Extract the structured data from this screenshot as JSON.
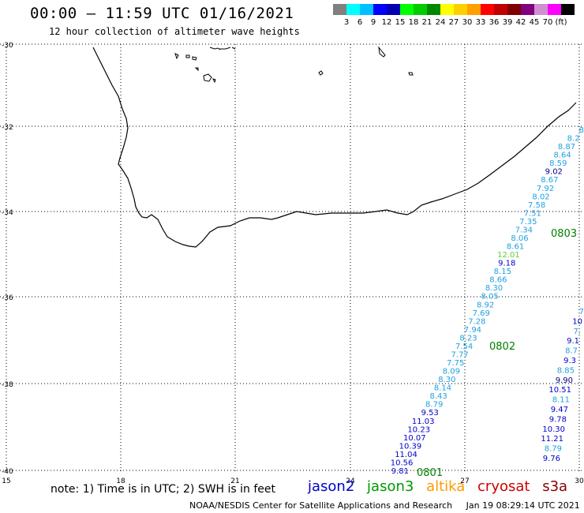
{
  "header": {
    "title": "00:00 – 11:59 UTC 01/16/2021",
    "subtitle": "12 hour collection of altimeter wave heights"
  },
  "legend": {
    "colors": [
      "#808080",
      "#00ffff",
      "#00c0ff",
      "#0000ff",
      "#0000b0",
      "#00ff00",
      "#00cc00",
      "#008800",
      "#ffff00",
      "#ffd000",
      "#ffa000",
      "#ff0000",
      "#c00000",
      "#800000",
      "#800080",
      "#d090d0",
      "#ff00ff",
      "#000000"
    ],
    "labels": [
      "3",
      "6",
      "9",
      "12",
      "15",
      "18",
      "21",
      "24",
      "27",
      "30",
      "33",
      "36",
      "39",
      "42",
      "45",
      "70",
      "(ft)"
    ]
  },
  "axes": {
    "lat_labels": [
      "-30",
      "-32",
      "-34",
      "-36",
      "-38",
      "-40"
    ],
    "lon_labels": [
      "15",
      "18",
      "21",
      "24",
      "27",
      "30"
    ]
  },
  "tracks": [
    {
      "id": "0801",
      "label": "0801",
      "color": "#008000"
    },
    {
      "id": "0802",
      "label": "0802",
      "color": "#008000"
    },
    {
      "id": "0803",
      "label": "0803",
      "color": "#008000"
    }
  ],
  "track_a": [
    {
      "v": "9.81",
      "c": "#0000cc"
    },
    {
      "v": "10.56",
      "c": "#0000cc"
    },
    {
      "v": "11.04",
      "c": "#0000cc"
    },
    {
      "v": "10.39",
      "c": "#0000cc"
    },
    {
      "v": "10.07",
      "c": "#0000cc"
    },
    {
      "v": "10.23",
      "c": "#0000cc"
    },
    {
      "v": "11.03",
      "c": "#0000cc"
    },
    {
      "v": "9.53",
      "c": "#0000cc"
    },
    {
      "v": "8.79",
      "c": "#1fa0e0"
    },
    {
      "v": "8.43",
      "c": "#1fa0e0"
    },
    {
      "v": "8.14",
      "c": "#1fa0e0"
    },
    {
      "v": "8.30",
      "c": "#1fa0e0"
    },
    {
      "v": "8.09",
      "c": "#1fa0e0"
    },
    {
      "v": "7.75",
      "c": "#1fa0e0"
    },
    {
      "v": "7.77",
      "c": "#1fa0e0"
    },
    {
      "v": "7.54",
      "c": "#1fa0e0"
    },
    {
      "v": "8.23",
      "c": "#1fa0e0"
    },
    {
      "v": "7.94",
      "c": "#1fa0e0"
    },
    {
      "v": "7.28",
      "c": "#1fa0e0"
    },
    {
      "v": "7.69",
      "c": "#1fa0e0"
    },
    {
      "v": "8.92",
      "c": "#1fa0e0"
    },
    {
      "v": "8.05",
      "c": "#1fa0e0"
    },
    {
      "v": "8.30",
      "c": "#1fa0e0"
    },
    {
      "v": "8.66",
      "c": "#1fa0e0"
    },
    {
      "v": "8.15",
      "c": "#1fa0e0"
    },
    {
      "v": "9.18",
      "c": "#0000cc"
    },
    {
      "v": "12.01",
      "c": "#66cc33"
    },
    {
      "v": "8.61",
      "c": "#1fa0e0"
    },
    {
      "v": "8.06",
      "c": "#1fa0e0"
    },
    {
      "v": "7.34",
      "c": "#1fa0e0"
    },
    {
      "v": "7.35",
      "c": "#1fa0e0"
    },
    {
      "v": "7.51",
      "c": "#1fa0e0"
    },
    {
      "v": "7.58",
      "c": "#1fa0e0"
    },
    {
      "v": "8.02",
      "c": "#1fa0e0"
    },
    {
      "v": "7.92",
      "c": "#1fa0e0"
    },
    {
      "v": "8.67",
      "c": "#1fa0e0"
    },
    {
      "v": "9.02",
      "c": "#000088"
    },
    {
      "v": "8.59",
      "c": "#1fa0e0"
    },
    {
      "v": "8.64",
      "c": "#1fa0e0"
    },
    {
      "v": "8.87",
      "c": "#1fa0e0"
    },
    {
      "v": "8.2",
      "c": "#1fa0e0"
    },
    {
      "v": "8",
      "c": "#1fa0e0"
    }
  ],
  "track_b": [
    {
      "v": "9.76",
      "c": "#0000cc"
    },
    {
      "v": "8.79",
      "c": "#1fa0e0"
    },
    {
      "v": "11.21",
      "c": "#0000cc"
    },
    {
      "v": "10.30",
      "c": "#0000cc"
    },
    {
      "v": "9.78",
      "c": "#0000cc"
    },
    {
      "v": "9.47",
      "c": "#0000cc"
    },
    {
      "v": "8.11",
      "c": "#1fa0e0"
    },
    {
      "v": "10.51",
      "c": "#0000cc"
    },
    {
      "v": "9.90",
      "c": "#000088"
    },
    {
      "v": "8.85",
      "c": "#1fa0e0"
    },
    {
      "v": "9.3",
      "c": "#0000cc"
    },
    {
      "v": "8.7",
      "c": "#1fa0e0"
    },
    {
      "v": "9.1",
      "c": "#0000cc"
    },
    {
      "v": "7.",
      "c": "#1fa0e0"
    },
    {
      "v": "10",
      "c": "#0000cc"
    },
    {
      "v": "7",
      "c": "#1fa0e0"
    }
  ],
  "note": "note: 1) Time is in UTC; 2) SWH is in feet",
  "satellites": [
    {
      "name": "jason2",
      "color": "#0000cc"
    },
    {
      "name": "jason3",
      "color": "#009900"
    },
    {
      "name": "altika",
      "color": "#ff9900"
    },
    {
      "name": "cryosat",
      "color": "#cc0000"
    },
    {
      "name": "s3a",
      "color": "#880000"
    }
  ],
  "footer": {
    "org": "NOAA/NESDIS Center for Satellite Applications and Research",
    "timestamp": "Jan 19 08:29:14 UTC 2021"
  }
}
